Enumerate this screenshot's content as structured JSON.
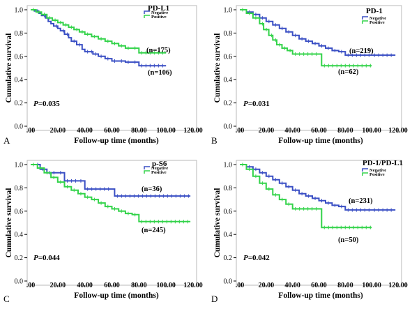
{
  "chart_data": [
    {
      "type": "line",
      "panel_label": "A",
      "title": "PD-L1",
      "xlabel": "Follow-up time (months)",
      "ylabel": "Cumulative survival",
      "xlim": [
        0,
        120
      ],
      "ylim": [
        0,
        1.0
      ],
      "x_tick_labels": [
        ".00",
        "20.00",
        "40.00",
        "60.00",
        "80.00",
        "100.00",
        "120.00"
      ],
      "y_tick_labels": [
        "0.0",
        "0.2",
        "0.4",
        "0.6",
        "0.8",
        "1.0"
      ],
      "p_label": "P",
      "p_value": "=0.035",
      "legend_position": "top-right",
      "series": [
        {
          "name": "Negative",
          "color": "#3a4fc4",
          "count_label": "(n=106)",
          "x": [
            0,
            3,
            6,
            8,
            11,
            13,
            15,
            17,
            20,
            22,
            25,
            28,
            30,
            34,
            38,
            40,
            46,
            50,
            55,
            60,
            65,
            70,
            75,
            80,
            100
          ],
          "y": [
            1.0,
            0.99,
            0.97,
            0.95,
            0.93,
            0.9,
            0.88,
            0.86,
            0.84,
            0.82,
            0.79,
            0.76,
            0.73,
            0.7,
            0.66,
            0.64,
            0.62,
            0.6,
            0.58,
            0.56,
            0.56,
            0.55,
            0.55,
            0.52,
            0.52
          ]
        },
        {
          "name": "Positive",
          "color": "#33d34a",
          "count_label": "(n=175)",
          "x": [
            0,
            4,
            8,
            12,
            16,
            20,
            24,
            28,
            32,
            36,
            40,
            45,
            50,
            55,
            60,
            65,
            70,
            75,
            80,
            100
          ],
          "y": [
            1.0,
            0.98,
            0.96,
            0.93,
            0.91,
            0.89,
            0.87,
            0.85,
            0.83,
            0.81,
            0.79,
            0.77,
            0.75,
            0.73,
            0.71,
            0.69,
            0.67,
            0.67,
            0.63,
            0.63
          ]
        }
      ]
    },
    {
      "type": "line",
      "panel_label": "B",
      "title": "PD-1",
      "xlabel": "Follow-up time (months)",
      "ylabel": "Cumulative survival",
      "xlim": [
        0,
        120
      ],
      "ylim": [
        0,
        1.0
      ],
      "x_tick_labels": [
        ".00",
        "20.00",
        "40.00",
        "60.00",
        "80.00",
        "100.00",
        "120.00"
      ],
      "y_tick_labels": [
        "0.0",
        "0.2",
        "0.4",
        "0.6",
        "0.8",
        "1.0"
      ],
      "p_label": "P",
      "p_value": "=0.031",
      "legend_position": "top-right",
      "series": [
        {
          "name": "Negative",
          "color": "#3a4fc4",
          "count_label": "(n=219)",
          "x": [
            0,
            5,
            10,
            15,
            20,
            25,
            30,
            35,
            40,
            45,
            50,
            55,
            60,
            65,
            70,
            75,
            80,
            100,
            118
          ],
          "y": [
            1.0,
            0.98,
            0.96,
            0.93,
            0.9,
            0.87,
            0.84,
            0.81,
            0.78,
            0.75,
            0.73,
            0.71,
            0.69,
            0.67,
            0.65,
            0.64,
            0.61,
            0.61,
            0.61
          ]
        },
        {
          "name": "Positive",
          "color": "#33d34a",
          "count_label": "(n=62)",
          "x": [
            0,
            5,
            10,
            15,
            18,
            22,
            25,
            28,
            32,
            36,
            40,
            60,
            62,
            100
          ],
          "y": [
            1.0,
            0.97,
            0.93,
            0.88,
            0.83,
            0.78,
            0.74,
            0.7,
            0.67,
            0.65,
            0.62,
            0.62,
            0.52,
            0.52
          ]
        }
      ]
    },
    {
      "type": "line",
      "panel_label": "C",
      "title": "p-S6",
      "xlabel": "Follow-up time (months)",
      "ylabel": "Cumulative survival",
      "xlim": [
        0,
        120
      ],
      "ylim": [
        0,
        1.0
      ],
      "x_tick_labels": [
        ".00",
        "20.00",
        "40.00",
        "60.00",
        "80.00",
        "100.00",
        "120.00"
      ],
      "y_tick_labels": [
        "0.0",
        "0.2",
        "0.4",
        "0.6",
        "0.8",
        "1.0"
      ],
      "p_label": "P",
      "p_value": "=0.044",
      "legend_position": "top-right",
      "series": [
        {
          "name": "Negative",
          "color": "#3a4fc4",
          "count_label": "(n=36)",
          "x": [
            0,
            7,
            12,
            20,
            25,
            35,
            40,
            60,
            62,
            118
          ],
          "y": [
            1.0,
            0.96,
            0.93,
            0.93,
            0.86,
            0.86,
            0.79,
            0.79,
            0.73,
            0.73
          ]
        },
        {
          "name": "Positive",
          "color": "#33d34a",
          "count_label": "(n=245)",
          "x": [
            0,
            5,
            10,
            15,
            20,
            25,
            30,
            35,
            40,
            45,
            50,
            55,
            60,
            65,
            70,
            75,
            80,
            118
          ],
          "y": [
            1.0,
            0.97,
            0.93,
            0.89,
            0.85,
            0.81,
            0.78,
            0.75,
            0.72,
            0.7,
            0.67,
            0.64,
            0.62,
            0.6,
            0.58,
            0.57,
            0.51,
            0.51
          ]
        }
      ]
    },
    {
      "type": "line",
      "panel_label": "D",
      "title": "PD-1/PD-L1",
      "xlabel": "Follow-up time (months)",
      "ylabel": "Cumulative survival",
      "xlim": [
        0,
        120
      ],
      "ylim": [
        0,
        1.0
      ],
      "x_tick_labels": [
        ".00",
        "20.00",
        "40.00",
        "60.00",
        "80.00",
        "100.00",
        "120.00"
      ],
      "y_tick_labels": [
        "0.0",
        "0.2",
        "0.4",
        "0.6",
        "0.8",
        "1.0"
      ],
      "p_label": "P",
      "p_value": "=0.042",
      "legend_position": "top-right",
      "series": [
        {
          "name": "Negative",
          "color": "#3a4fc4",
          "count_label": "(n=231)",
          "x": [
            0,
            5,
            10,
            15,
            20,
            25,
            30,
            35,
            40,
            45,
            50,
            55,
            60,
            65,
            70,
            75,
            80,
            100,
            118
          ],
          "y": [
            1.0,
            0.98,
            0.96,
            0.93,
            0.9,
            0.87,
            0.84,
            0.81,
            0.78,
            0.75,
            0.73,
            0.71,
            0.69,
            0.67,
            0.65,
            0.64,
            0.61,
            0.61,
            0.61
          ]
        },
        {
          "name": "Positive",
          "color": "#33d34a",
          "count_label": "(n=50)",
          "x": [
            0,
            5,
            10,
            15,
            20,
            25,
            30,
            35,
            40,
            60,
            62,
            100
          ],
          "y": [
            1.0,
            0.96,
            0.9,
            0.84,
            0.79,
            0.74,
            0.7,
            0.66,
            0.62,
            0.62,
            0.46,
            0.46
          ]
        }
      ]
    }
  ]
}
